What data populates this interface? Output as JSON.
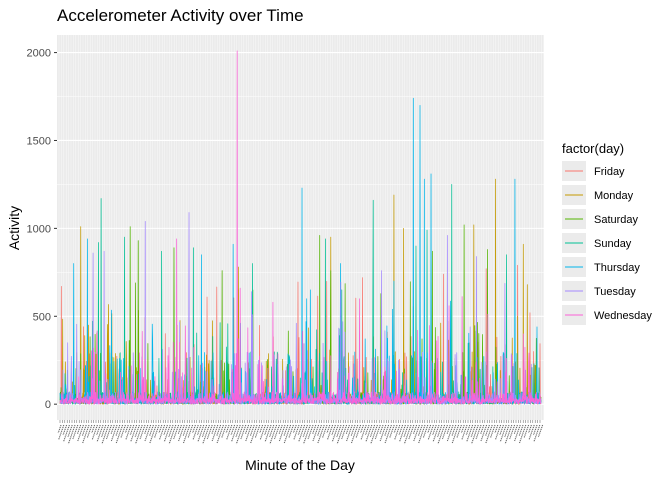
{
  "chart_data": {
    "type": "line",
    "title": "Accelerometer Activity over Time",
    "xlabel": "Minute of the Day",
    "ylabel": "Activity",
    "ylim": [
      0,
      2100
    ],
    "yticks": [
      0,
      500,
      1000,
      1500,
      2000
    ],
    "grid": true,
    "x_ticks_note": "x tick labels (one per minute) are rendered as an illegible dense band",
    "legend": {
      "title": "factor(day)",
      "placement": "right",
      "entries": [
        "Friday",
        "Monday",
        "Saturday",
        "Sunday",
        "Thursday",
        "Tuesday",
        "Wednesday"
      ]
    },
    "colors": {
      "Friday": "#F8766D",
      "Monday": "#C49A00",
      "Saturday": "#53B400",
      "Sunday": "#00C094",
      "Thursday": "#00B6EB",
      "Tuesday": "#A58AFF",
      "Wednesday": "#FB61D7"
    },
    "n_minutes": 1440,
    "series": [
      {
        "name": "Friday",
        "peaks": [
          [
            10,
            670
          ],
          [
            1070,
            610
          ],
          [
            1300,
            650
          ],
          [
            1540,
            200
          ],
          [
            2200,
            720
          ],
          [
            2790,
            740
          ],
          [
            3100,
            770
          ],
          [
            3330,
            790
          ],
          [
            3420,
            520
          ]
        ]
      },
      {
        "name": "Monday",
        "peaks": [
          [
            150,
            1010
          ],
          [
            180,
            390
          ],
          [
            1300,
            780
          ],
          [
            1970,
            950
          ],
          [
            2430,
            1190
          ],
          [
            2500,
            1000
          ],
          [
            3010,
            1020
          ],
          [
            3170,
            1280
          ],
          [
            3330,
            500
          ],
          [
            3370,
            910
          ],
          [
            3400,
            680
          ]
        ]
      },
      {
        "name": "Saturday",
        "peaks": [
          [
            550,
            690
          ],
          [
            510,
            1010
          ],
          [
            570,
            930
          ],
          [
            830,
            890
          ],
          [
            1180,
            760
          ],
          [
            1890,
            960
          ],
          [
            1970,
            760
          ],
          [
            2710,
            870
          ],
          [
            2940,
            1020
          ],
          [
            3110,
            880
          ]
        ]
      },
      {
        "name": "Sunday",
        "peaks": [
          [
            280,
            920
          ],
          [
            300,
            1170
          ],
          [
            470,
            950
          ],
          [
            740,
            870
          ],
          [
            970,
            890
          ],
          [
            1400,
            800
          ],
          [
            1930,
            940
          ],
          [
            2050,
            650
          ],
          [
            2280,
            1160
          ],
          [
            2590,
            900
          ],
          [
            2670,
            990
          ],
          [
            2850,
            1250
          ],
          [
            3250,
            850
          ]
        ]
      },
      {
        "name": "Thursday",
        "peaks": [
          [
            100,
            800
          ],
          [
            200,
            940
          ],
          [
            1030,
            850
          ],
          [
            1260,
            910
          ],
          [
            1760,
            1230
          ],
          [
            2040,
            800
          ],
          [
            2430,
            700
          ],
          [
            2570,
            1740
          ],
          [
            2620,
            1700
          ],
          [
            2650,
            1280
          ],
          [
            2700,
            1310
          ],
          [
            3310,
            1280
          ],
          [
            3470,
            440
          ]
        ]
      },
      {
        "name": "Tuesday",
        "peaks": [
          [
            240,
            860
          ],
          [
            320,
            870
          ],
          [
            620,
            1040
          ],
          [
            940,
            1090
          ],
          [
            1720,
            460
          ],
          [
            2340,
            760
          ],
          [
            2820,
            960
          ],
          [
            3030,
            840
          ]
        ]
      },
      {
        "name": "Wednesday",
        "peaks": [
          [
            850,
            940
          ],
          [
            1290,
            2010
          ],
          [
            1310,
            660
          ],
          [
            1550,
            580
          ],
          [
            2830,
            560
          ],
          [
            3370,
            400
          ]
        ]
      }
    ]
  }
}
